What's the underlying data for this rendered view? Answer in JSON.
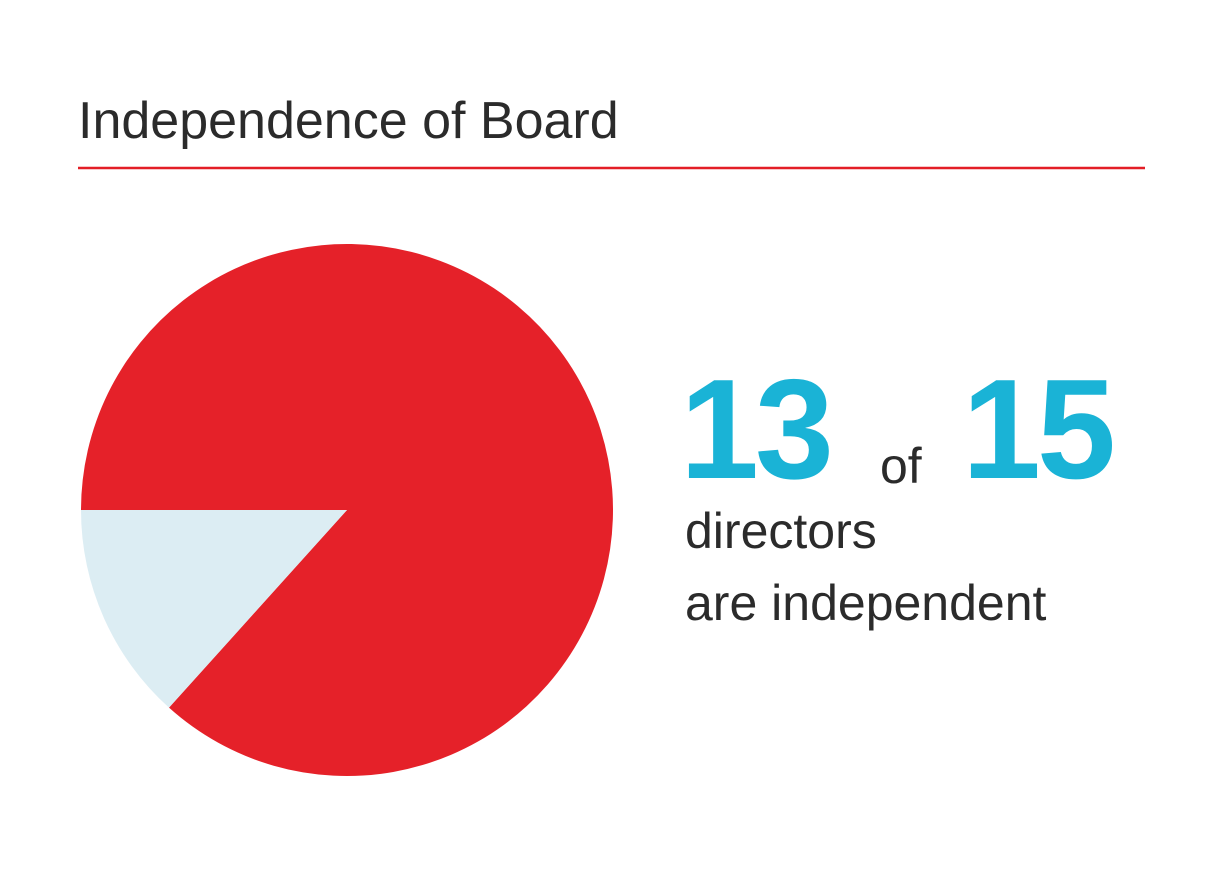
{
  "chart_data": {
    "type": "pie",
    "title": "Independence of Board",
    "values": [
      13,
      2
    ],
    "colors": [
      "#e52129",
      "#dcedf3"
    ],
    "total": 15,
    "connector": "of",
    "caption": [
      "directors",
      "are independent"
    ],
    "rule_color": "#e31e26"
  }
}
